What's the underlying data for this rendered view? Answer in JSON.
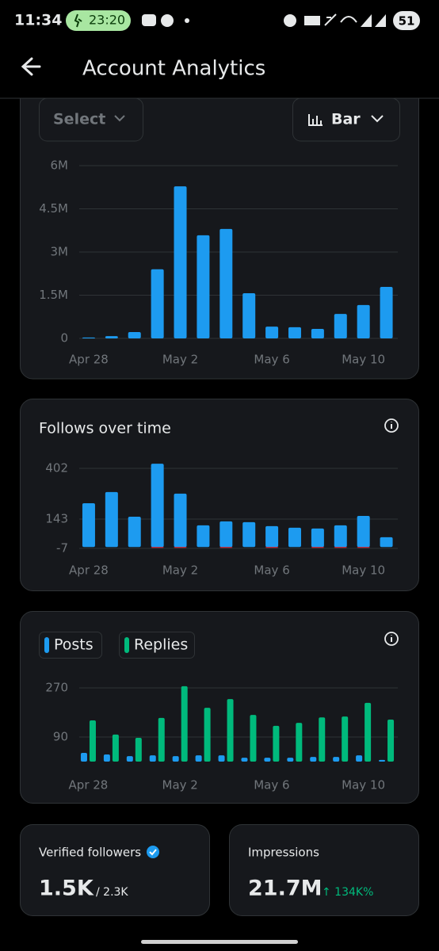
{
  "status_bar": {
    "time": "11:34",
    "timer": "23:20",
    "battery": "51"
  },
  "header": {
    "title": "Account Analytics"
  },
  "controls": {
    "select": "Select",
    "chart_type": "Bar"
  },
  "chart_data": [
    {
      "type": "bar",
      "categories": [
        "Apr 28",
        null,
        null,
        null,
        "May 2",
        null,
        null,
        null,
        "May 6",
        null,
        null,
        null,
        "May 10",
        null
      ],
      "series": [
        {
          "color": "#1d9bf0",
          "values": [
            30000,
            80000,
            220000,
            2400000,
            5280000,
            3580000,
            3800000,
            1570000,
            410000,
            390000,
            330000,
            850000,
            1160000,
            1790000
          ]
        }
      ],
      "ylim": [
        0,
        6000000
      ],
      "yticks": [
        0,
        {
          "value": 1500000,
          "label": "1.5M"
        },
        {
          "value": 3000000,
          "label": "3M"
        },
        {
          "value": 4500000,
          "label": "4.5M"
        },
        {
          "value": 6000000,
          "label": "6M"
        }
      ],
      "grid": true,
      "barmode": "overlay"
    },
    {
      "type": "bar",
      "title": "Follows over time",
      "categories": [
        "Apr 28",
        null,
        null,
        null,
        "May 2",
        null,
        null,
        null,
        "May 6",
        null,
        null,
        null,
        "May 10",
        null
      ],
      "series": [
        {
          "color": "#1d9bf0",
          "values": [
            224,
            281,
            155,
            426,
            273,
            111,
            131,
            127,
            107,
            99,
            95,
            111,
            159,
            50
          ]
        },
        {
          "color": "#f4212e",
          "values": [
            0,
            0,
            0,
            -4,
            -4,
            0,
            -4,
            0,
            -4,
            0,
            -4,
            -4,
            -4,
            0
          ]
        }
      ],
      "ylim": [
        -7,
        430
      ],
      "yticks": [
        -7,
        143,
        402
      ],
      "grid": true,
      "barmode": "overlay"
    },
    {
      "type": "bar",
      "categories": [
        "Apr 28",
        null,
        null,
        null,
        "May 2",
        null,
        null,
        null,
        "May 6",
        null,
        null,
        null,
        "May 10",
        null
      ],
      "series": [
        {
          "name": "Posts",
          "color": "#1d9bf0",
          "values": [
            32,
            26,
            20,
            23,
            20,
            23,
            23,
            14,
            14,
            14,
            17,
            17,
            23,
            6
          ]
        },
        {
          "name": "Replies",
          "color": "#00ba7c",
          "values": [
            151,
            99,
            87,
            160,
            276,
            197,
            229,
            171,
            131,
            142,
            162,
            165,
            215,
            154
          ]
        }
      ],
      "ylim": [
        0,
        290
      ],
      "yticks": [
        90,
        270
      ],
      "grid": true,
      "barmode": "group",
      "legend": true
    }
  ],
  "stats": [
    {
      "label": "Verified followers",
      "value": "1.5K",
      "secondary": "/ 2.3K"
    },
    {
      "label": "Impressions",
      "value": "21.7M",
      "change": "↑ 134K%"
    }
  ]
}
